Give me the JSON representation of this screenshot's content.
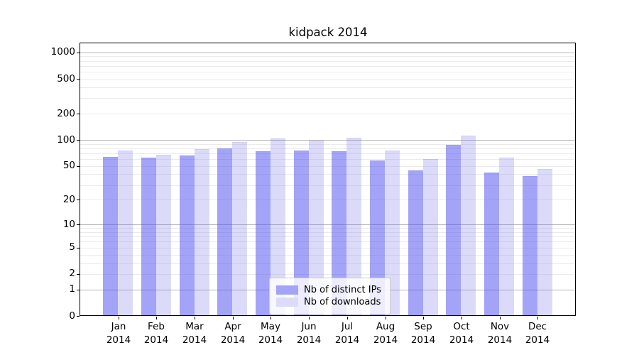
{
  "chart_data": {
    "type": "bar",
    "title": "kidpack 2014",
    "categories": [
      "Jan 2014",
      "Feb 2014",
      "Mar 2014",
      "Apr 2014",
      "May 2014",
      "Jun 2014",
      "Jul 2014",
      "Aug 2014",
      "Sep 2014",
      "Oct 2014",
      "Nov 2014",
      "Dec 2014"
    ],
    "series": [
      {
        "name": "Nb of distinct IPs",
        "color": "#5050f0",
        "edge": "#4646d8",
        "alpha": 0.52,
        "values": [
          64,
          63,
          66,
          80,
          74,
          75,
          74,
          58,
          44,
          87,
          42,
          38
        ]
      },
      {
        "name": "Nb of downloads",
        "color": "#7878eb",
        "edge": "#4040c0",
        "alpha": 0.26,
        "values": [
          75,
          68,
          78,
          94,
          103,
          98,
          105,
          75,
          60,
          113,
          62,
          46
        ]
      }
    ],
    "xlabel": "",
    "ylabel": "",
    "yscale": "log1p",
    "ylim": [
      0,
      1270
    ],
    "yticks": [
      0,
      1,
      2,
      5,
      10,
      20,
      50,
      100,
      200,
      500,
      1000
    ],
    "grid": "major-and-minor",
    "gridline_major_color": "#b4b4b4",
    "gridline_minor_color": "#ebebeb",
    "legend_position": "lower center"
  }
}
